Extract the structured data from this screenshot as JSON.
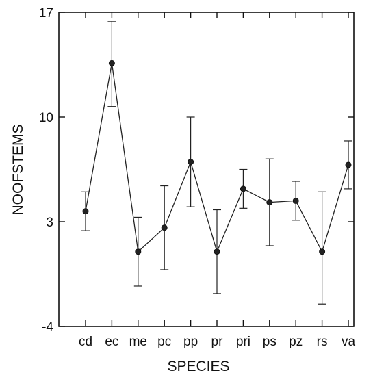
{
  "chart_data": {
    "type": "line",
    "title": "",
    "xlabel": "SPECIES",
    "ylabel": "NOOFSTEMS",
    "categories": [
      "cd",
      "ec",
      "me",
      "pc",
      "pp",
      "pr",
      "pri",
      "ps",
      "pz",
      "rs",
      "va"
    ],
    "series": [
      {
        "values": [
          3.7,
          13.6,
          1.0,
          2.6,
          7.0,
          1.0,
          5.2,
          4.3,
          4.4,
          1.0,
          6.8
        ],
        "error_low": [
          2.4,
          10.7,
          -1.3,
          -0.2,
          4.0,
          -1.8,
          3.9,
          1.4,
          3.1,
          -2.5,
          5.2
        ],
        "error_high": [
          5.0,
          16.4,
          3.3,
          5.4,
          10.0,
          3.8,
          6.5,
          7.2,
          5.7,
          5.0,
          8.4
        ]
      }
    ],
    "ylim": [
      -4,
      17
    ],
    "yticks": [
      -4,
      3,
      10,
      17
    ],
    "ytick_labels": [
      "-4",
      "3",
      "10",
      "17"
    ],
    "grid": false,
    "legend": false,
    "marker": "filled-circle",
    "line_color": "#222222"
  }
}
